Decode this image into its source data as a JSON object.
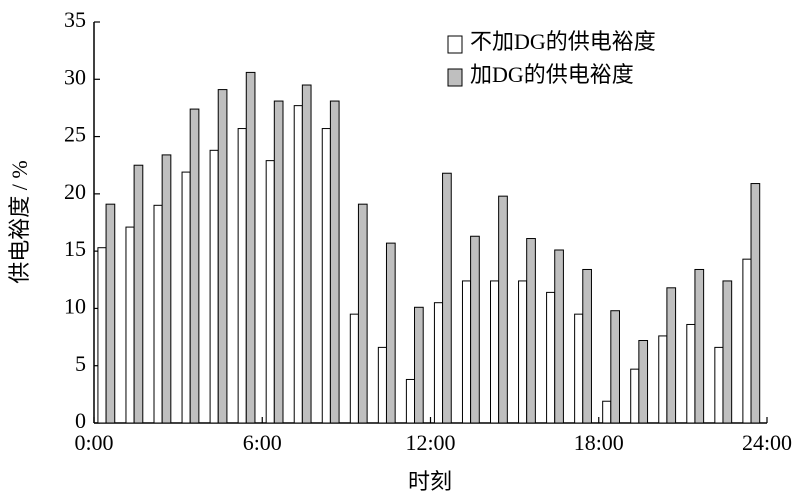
{
  "chart_data": {
    "type": "bar",
    "x_label": "时刻",
    "y_label": "供电裕度 / %",
    "x": [
      0,
      1,
      2,
      3,
      4,
      5,
      6,
      7,
      8,
      9,
      10,
      11,
      12,
      13,
      14,
      15,
      16,
      17,
      18,
      19,
      20,
      21,
      22,
      23
    ],
    "series": [
      {
        "name": "不加DG的供电裕度",
        "color": "#ffffff",
        "values": [
          15.3,
          17.1,
          19.0,
          21.9,
          23.8,
          25.7,
          22.9,
          27.7,
          25.7,
          9.5,
          6.6,
          3.8,
          10.5,
          12.4,
          12.4,
          12.4,
          11.4,
          9.5,
          1.9,
          4.7,
          7.6,
          8.6,
          6.6,
          14.3
        ]
      },
      {
        "name": "加DG的供电裕度",
        "color": "#bfbfbf",
        "values": [
          19.1,
          22.5,
          23.4,
          27.4,
          29.1,
          30.6,
          28.1,
          29.5,
          28.1,
          19.1,
          15.7,
          10.1,
          21.8,
          16.3,
          19.8,
          16.1,
          15.1,
          13.4,
          9.8,
          7.2,
          11.8,
          13.4,
          12.4,
          20.9
        ]
      }
    ],
    "xlim": [
      0,
      24
    ],
    "xticks": [
      {
        "value": 0,
        "label": "0:00"
      },
      {
        "value": 6,
        "label": "6:00"
      },
      {
        "value": 12,
        "label": "12:00"
      },
      {
        "value": 18,
        "label": "18:00"
      },
      {
        "value": 24,
        "label": "24:00"
      }
    ],
    "ylim": [
      0,
      35
    ],
    "yticks": [
      0,
      5,
      10,
      15,
      20,
      25,
      30,
      35
    ],
    "grid": false,
    "legend": "upper right"
  }
}
